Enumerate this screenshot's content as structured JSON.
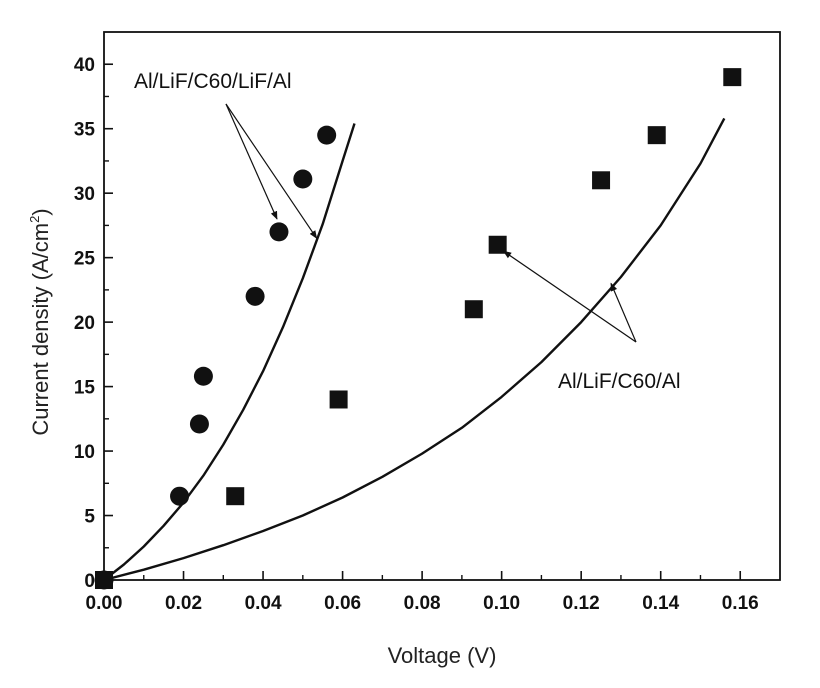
{
  "chart_data": {
    "type": "scatter",
    "xlabel": "Voltage (V)",
    "ylabel": "Current density (A/cm",
    "ylabel_sup": "2",
    "ylabel_close": ")",
    "xlim": [
      0,
      0.17
    ],
    "ylim": [
      0,
      42.5
    ],
    "x_ticks": [
      0.0,
      0.02,
      0.04,
      0.06,
      0.08,
      0.1,
      0.12,
      0.14,
      0.16
    ],
    "x_tick_labels": [
      "0.00",
      "0.02",
      "0.04",
      "0.06",
      "0.08",
      "0.10",
      "0.12",
      "0.14",
      "0.16"
    ],
    "y_ticks": [
      0,
      5,
      10,
      15,
      20,
      25,
      30,
      35,
      40
    ],
    "y_tick_labels": [
      "0",
      "5",
      "10",
      "15",
      "20",
      "25",
      "30",
      "35",
      "40"
    ],
    "grid": false,
    "series": [
      {
        "name": "Al/LiF/C60/LiF/Al",
        "marker": "circle",
        "x": [
          0.0,
          0.019,
          0.024,
          0.025,
          0.038,
          0.044,
          0.05,
          0.056
        ],
        "y": [
          0.0,
          6.5,
          12.1,
          15.8,
          22.0,
          27.0,
          31.1,
          34.5
        ]
      },
      {
        "name": "Al/LiF/C60/Al",
        "marker": "square",
        "x": [
          0.0,
          0.033,
          0.059,
          0.093,
          0.099,
          0.125,
          0.139,
          0.158
        ],
        "y": [
          0.0,
          6.5,
          14.0,
          21.0,
          26.0,
          31.0,
          34.5,
          39.0
        ]
      }
    ],
    "fit_curves": [
      {
        "for": "Al/LiF/C60/LiF/Al",
        "x": [
          0.0,
          0.005,
          0.01,
          0.015,
          0.02,
          0.025,
          0.03,
          0.035,
          0.04,
          0.045,
          0.05,
          0.055,
          0.06,
          0.063
        ],
        "y": [
          0.0,
          1.2,
          2.6,
          4.2,
          6.0,
          8.1,
          10.5,
          13.2,
          16.2,
          19.6,
          23.4,
          27.6,
          32.5,
          35.4
        ]
      },
      {
        "for": "Al/LiF/C60/Al",
        "x": [
          0.0,
          0.01,
          0.02,
          0.03,
          0.04,
          0.05,
          0.06,
          0.07,
          0.08,
          0.09,
          0.1,
          0.11,
          0.12,
          0.13,
          0.14,
          0.15,
          0.156
        ],
        "y": [
          0.0,
          0.8,
          1.7,
          2.7,
          3.8,
          5.0,
          6.4,
          8.0,
          9.8,
          11.8,
          14.2,
          16.9,
          20.0,
          23.5,
          27.5,
          32.3,
          35.8
        ]
      }
    ],
    "annotations": [
      {
        "text": "Al/LiF/C60/LiF/Al",
        "arrows_to": [
          [
            0.0435,
            28.0
          ],
          [
            0.0535,
            26.5
          ]
        ]
      },
      {
        "text": "Al/LiF/C60/Al",
        "arrows_to": [
          [
            0.1005,
            25.5
          ],
          [
            0.1275,
            23.0
          ]
        ]
      }
    ]
  }
}
